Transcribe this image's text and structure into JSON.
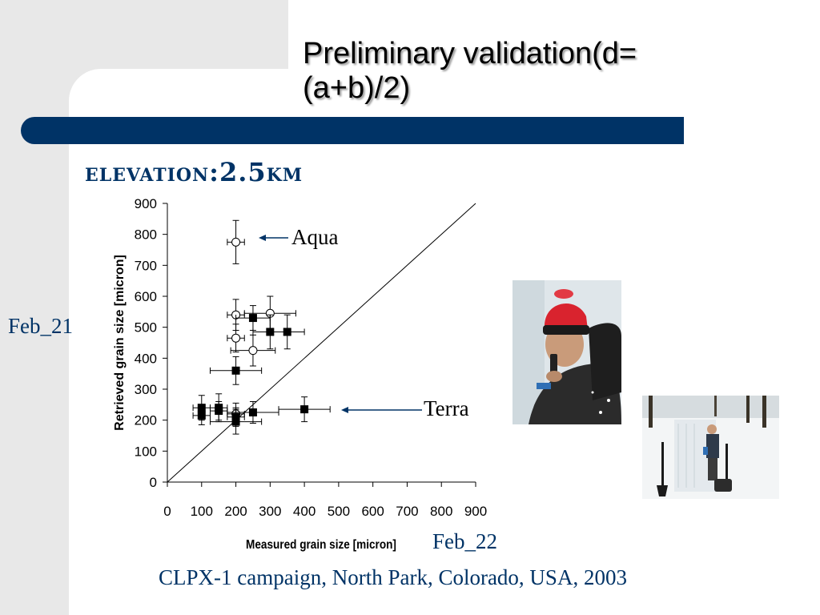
{
  "slide": {
    "title": "Preliminary validation(d=(a+b)/2)",
    "subtitle": "elevation:2.5km",
    "caption": "CLPX-1 campaign, North Park,  Colorado, USA, 2003",
    "colors": {
      "band": "#003366",
      "text_accent": "#003366",
      "panel": "#e8e8e8"
    }
  },
  "annotations": {
    "feb21": "Feb_21",
    "feb22": "Feb_22",
    "aqua": "Aqua",
    "terra": "Terra"
  },
  "photos": [
    {
      "name": "photo-researcher-closeup",
      "icon": "photo-person-red-hat"
    },
    {
      "name": "photo-snow-pit",
      "icon": "photo-snow-pit"
    }
  ],
  "chart_data": {
    "type": "scatter",
    "xlabel": "Measured grain size [micron]",
    "ylabel": "Retrieved grain size [micron]",
    "xlim": [
      0,
      900
    ],
    "ylim": [
      0,
      900
    ],
    "xticks": [
      0,
      100,
      200,
      300,
      400,
      500,
      600,
      700,
      800,
      900
    ],
    "yticks": [
      0,
      100,
      200,
      300,
      400,
      500,
      600,
      700,
      800,
      900
    ],
    "grid": false,
    "reference_line": {
      "x": [
        0,
        900
      ],
      "y": [
        0,
        900
      ]
    },
    "series": [
      {
        "marker": "open-circle",
        "points": [
          {
            "x": 200,
            "y": 775,
            "xerr": 25,
            "yerr": 70
          },
          {
            "x": 200,
            "y": 540,
            "xerr": 25,
            "yerr": 50
          },
          {
            "x": 300,
            "y": 545,
            "xerr": 75,
            "yerr": 55
          },
          {
            "x": 200,
            "y": 465,
            "xerr": 25,
            "yerr": 45
          },
          {
            "x": 250,
            "y": 425,
            "xerr": 65,
            "yerr": 50
          },
          {
            "x": 200,
            "y": 220,
            "xerr": 25,
            "yerr": 35
          }
        ]
      },
      {
        "marker": "filled-square",
        "points": [
          {
            "x": 250,
            "y": 530,
            "xerr": 50,
            "yerr": 40
          },
          {
            "x": 300,
            "y": 485,
            "xerr": 50,
            "yerr": 55
          },
          {
            "x": 350,
            "y": 485,
            "xerr": 50,
            "yerr": 55
          },
          {
            "x": 200,
            "y": 360,
            "xerr": 75,
            "yerr": 45
          },
          {
            "x": 100,
            "y": 240,
            "xerr": 25,
            "yerr": 40
          },
          {
            "x": 150,
            "y": 240,
            "xerr": 25,
            "yerr": 45
          },
          {
            "x": 100,
            "y": 215,
            "xerr": 25,
            "yerr": 30
          },
          {
            "x": 150,
            "y": 230,
            "xerr": 25,
            "yerr": 30
          },
          {
            "x": 200,
            "y": 210,
            "xerr": 25,
            "yerr": 30
          },
          {
            "x": 200,
            "y": 195,
            "xerr": 75,
            "yerr": 40
          },
          {
            "x": 250,
            "y": 225,
            "xerr": 75,
            "yerr": 35
          },
          {
            "x": 400,
            "y": 235,
            "xerr": 75,
            "yerr": 40
          }
        ]
      }
    ]
  }
}
